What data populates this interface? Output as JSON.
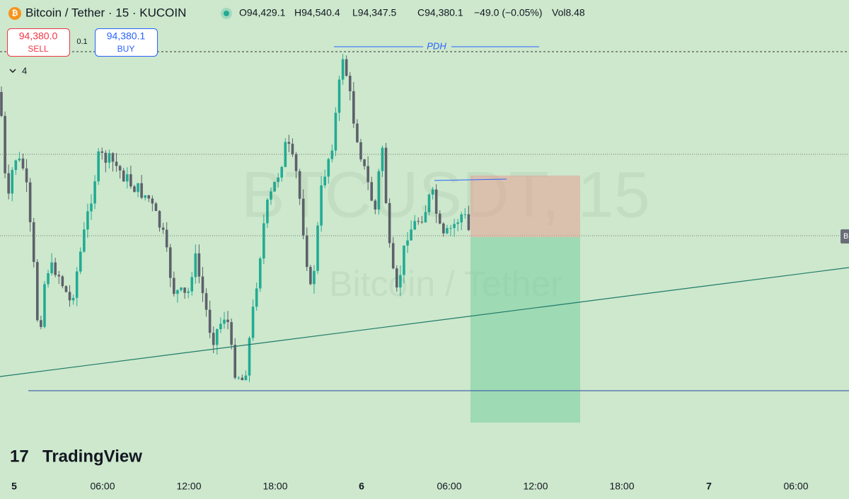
{
  "header": {
    "symbol": "Bitcoin / Tether · 15 · KUCOIN",
    "open": "O94,429.1",
    "high": "H94,540.4",
    "low": "L94,347.5",
    "close": "C94,380.1",
    "change": "−49.0 (−0.05%)",
    "volume": "Vol8.48"
  },
  "trade": {
    "sell_price": "94,380.0",
    "sell_label": "SELL",
    "spread": "0.1",
    "buy_price": "94,380.1",
    "buy_label": "BUY"
  },
  "indicators_toggle": "4",
  "annotations": {
    "pdh": "PDH",
    "price_tag": "B"
  },
  "watermark": {
    "symbol": "BTCUSDT, 15",
    "name": "Bitcoin / Tether"
  },
  "logo": "TradingView",
  "time_axis": [
    "5",
    "06:00",
    "12:00",
    "18:00",
    "6",
    "06:00",
    "12:00",
    "18:00",
    "7",
    "06:00"
  ]
}
